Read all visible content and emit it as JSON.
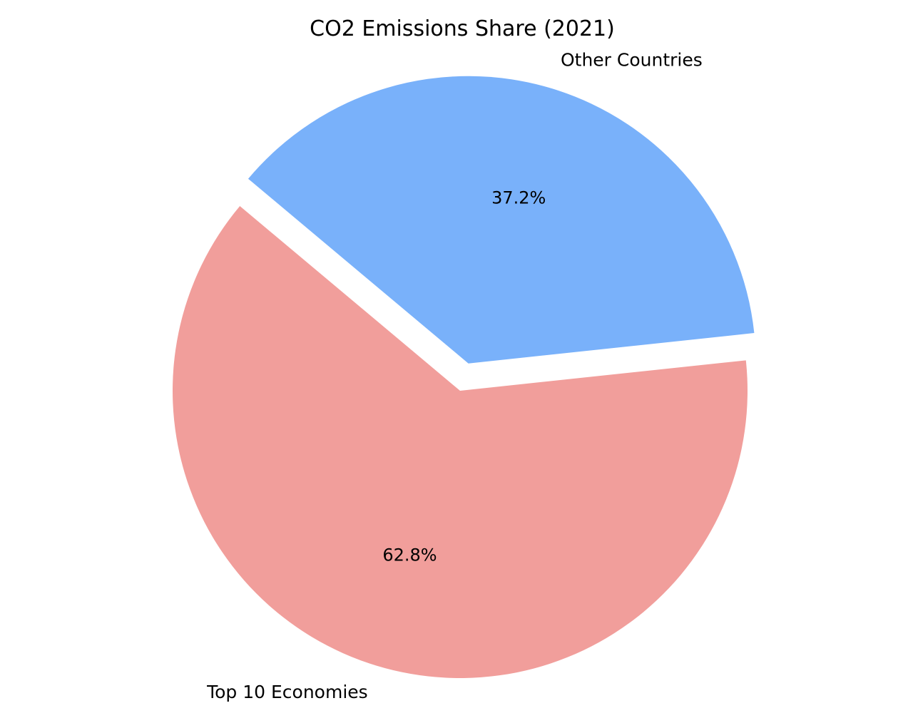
{
  "chart_data": {
    "type": "pie",
    "title": "CO2 Emissions Share (2021)",
    "slices": [
      {
        "label": "Top 10 Economies",
        "value": 62.8,
        "pct_label": "62.8%",
        "color": "#f19e9b",
        "exploded": false
      },
      {
        "label": "Other Countries",
        "value": 37.2,
        "pct_label": "37.2%",
        "color": "#79b1fa",
        "exploded": true
      }
    ],
    "start_angle_deg": 140,
    "direction": "counterclockwise"
  }
}
